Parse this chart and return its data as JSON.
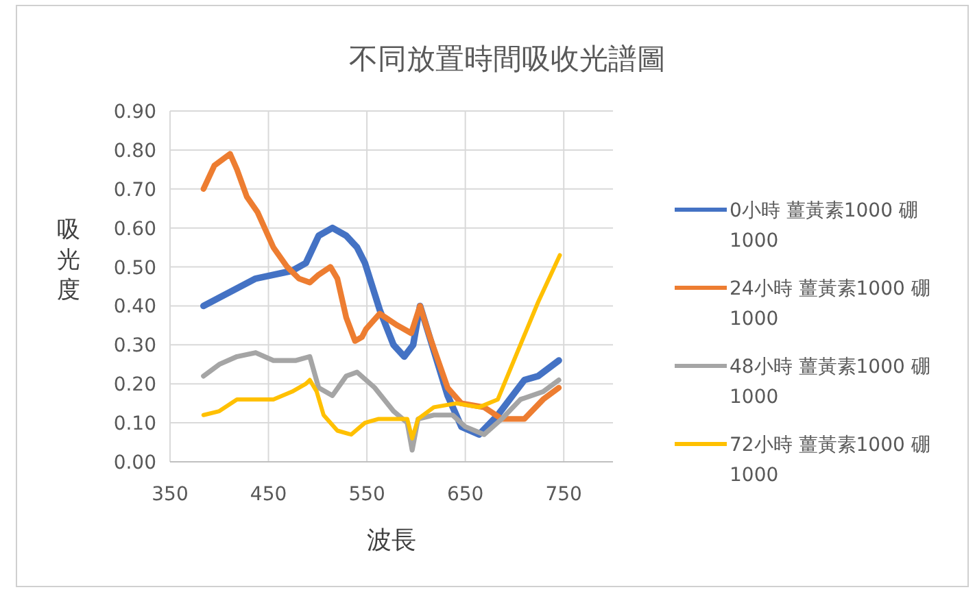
{
  "chart_data": {
    "type": "line",
    "title": "不同放置時間吸收光譜圖",
    "xlabel": "波長",
    "ylabel": "吸光度",
    "xlim": [
      350,
      800
    ],
    "xticks": [
      350,
      450,
      550,
      650,
      750
    ],
    "ylim": [
      0,
      0.9
    ],
    "yticks": [
      {
        "value": 0,
        "label": "0.00"
      },
      {
        "value": 0.1,
        "label": "0.10"
      },
      {
        "value": 0.2,
        "label": "0.20"
      },
      {
        "value": 0.3,
        "label": "0.30"
      },
      {
        "value": 0.4,
        "label": "0.40"
      },
      {
        "value": 0.5,
        "label": "0.50"
      },
      {
        "value": 0.6,
        "label": "0.60"
      },
      {
        "value": 0.7,
        "label": "0.70"
      },
      {
        "value": 0.8,
        "label": "0.80"
      },
      {
        "value": 0.9,
        "label": "0.90"
      }
    ],
    "grid": true,
    "legend": "right",
    "marker": "none",
    "line_style": "solid",
    "series": [
      {
        "name": "0小時 薑黃素1000 硼 1000",
        "color": "#4472c4",
        "x": [
          384,
          437,
          474,
          488,
          501,
          515,
          529,
          540,
          548,
          563,
          577,
          588,
          597,
          604,
          632,
          646,
          664,
          683,
          710,
          724,
          745
        ],
        "values": [
          0.4,
          0.47,
          0.49,
          0.51,
          0.58,
          0.6,
          0.58,
          0.55,
          0.51,
          0.39,
          0.3,
          0.27,
          0.3,
          0.4,
          0.17,
          0.09,
          0.07,
          0.12,
          0.21,
          0.22,
          0.26
        ]
      },
      {
        "name": "24小時 薑黃素1000 硼 1000",
        "color": "#ed7d31",
        "x": [
          384,
          395,
          411,
          418,
          428,
          439,
          455,
          469,
          481,
          492,
          501,
          513,
          520,
          529,
          538,
          545,
          549,
          563,
          581,
          595,
          604,
          614,
          632,
          646,
          669,
          687,
          710,
          729,
          745
        ],
        "values": [
          0.7,
          0.76,
          0.79,
          0.75,
          0.68,
          0.64,
          0.55,
          0.5,
          0.47,
          0.46,
          0.48,
          0.5,
          0.47,
          0.37,
          0.31,
          0.32,
          0.34,
          0.38,
          0.35,
          0.33,
          0.4,
          0.32,
          0.19,
          0.15,
          0.14,
          0.11,
          0.11,
          0.16,
          0.19
        ]
      },
      {
        "name": "48小時 薑黃素1000 硼 1000",
        "color": "#a5a5a5",
        "x": [
          384,
          400,
          418,
          437,
          455,
          478,
          492,
          501,
          515,
          529,
          540,
          558,
          577,
          591,
          596,
          602,
          618,
          637,
          650,
          669,
          687,
          706,
          729,
          745
        ],
        "values": [
          0.22,
          0.25,
          0.27,
          0.28,
          0.26,
          0.26,
          0.27,
          0.19,
          0.17,
          0.22,
          0.23,
          0.19,
          0.13,
          0.1,
          0.03,
          0.11,
          0.12,
          0.12,
          0.09,
          0.07,
          0.11,
          0.16,
          0.18,
          0.21
        ]
      },
      {
        "name": "72小時 薑黃素1000 硼 1000",
        "color": "#ffc000",
        "x": [
          384,
          400,
          418,
          437,
          455,
          474,
          488,
          492,
          499,
          506,
          520,
          534,
          548,
          562,
          581,
          591,
          596,
          602,
          618,
          641,
          664,
          683,
          701,
          724,
          746
        ],
        "values": [
          0.12,
          0.13,
          0.16,
          0.16,
          0.16,
          0.18,
          0.2,
          0.21,
          0.18,
          0.12,
          0.08,
          0.07,
          0.1,
          0.11,
          0.11,
          0.11,
          0.06,
          0.11,
          0.14,
          0.15,
          0.14,
          0.16,
          0.27,
          0.41,
          0.53
        ]
      }
    ]
  }
}
